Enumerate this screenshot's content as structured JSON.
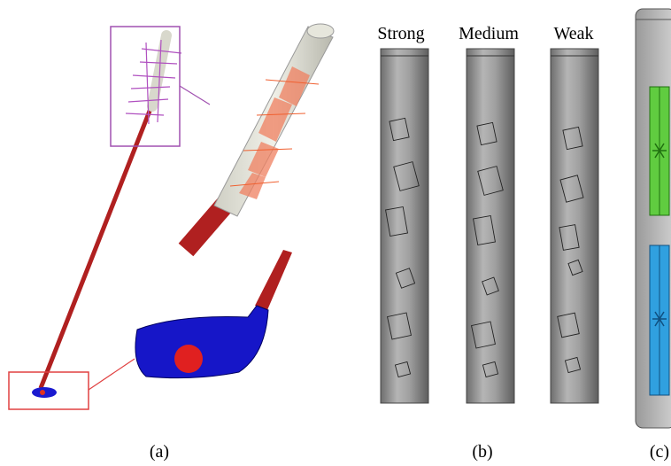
{
  "grip_labels": [
    "Strong",
    "Medium",
    "Weak"
  ],
  "panel_labels": [
    "(a)",
    "(b)",
    "(c)"
  ]
}
